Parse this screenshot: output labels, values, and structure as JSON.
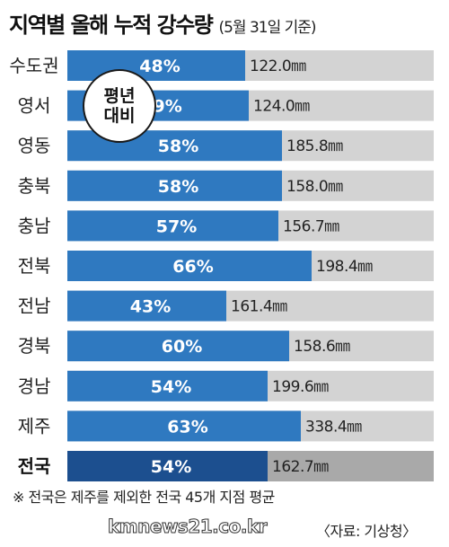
{
  "header": {
    "title": "지역별 올해 누적 강수량",
    "subtitle": "(5월 31일 기준)"
  },
  "badge": {
    "line1": "평년",
    "line2": "대비"
  },
  "footnote": "※ 전국은 제주를 제외한 전국 45개 지점 평균",
  "watermark": "kmnews21.co.kr",
  "source": "〈자료: 기상청〉",
  "colors": {
    "bar": "#2f79c0",
    "bar_total": "#1c4f8f",
    "track": "#d3d3d3",
    "track_total": "#a9a9a9"
  },
  "chart_data": {
    "type": "bar",
    "orientation": "horizontal",
    "title": "지역별 올해 누적 강수량",
    "subtitle": "(5월 31일 기준)",
    "xlim": [
      0,
      100
    ],
    "categories": [
      "수도권",
      "영서",
      "영동",
      "충북",
      "충남",
      "전북",
      "전남",
      "경북",
      "경남",
      "제주",
      "전국"
    ],
    "series": [
      {
        "values": [
          48,
          49,
          58,
          58,
          57,
          66,
          43,
          60,
          54,
          63,
          54
        ],
        "labels": [
          "48%",
          "49%",
          "58%",
          "58%",
          "57%",
          "66%",
          "43%",
          "60%",
          "54%",
          "63%",
          "54%"
        ]
      }
    ],
    "amounts": [
      "122.0㎜",
      "124.0㎜",
      "185.8㎜",
      "158.0㎜",
      "156.7㎜",
      "198.4㎜",
      "161.4㎜",
      "158.6㎜",
      "199.6㎜",
      "338.4㎜",
      "162.7㎜"
    ],
    "highlight_category": "전국"
  }
}
